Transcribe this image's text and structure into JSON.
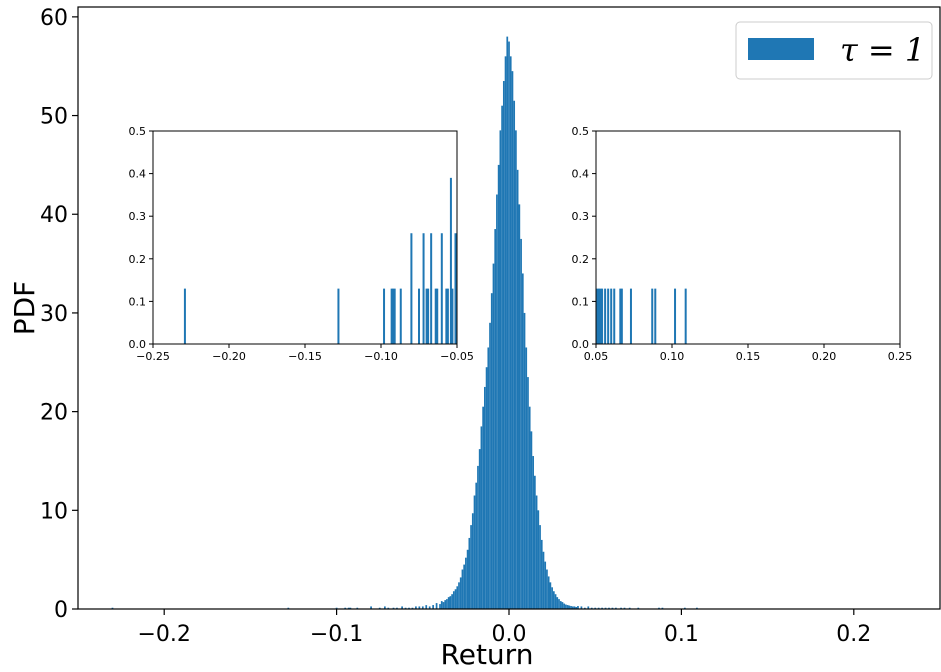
{
  "chart_data": [
    {
      "type": "bar",
      "role": "main",
      "xlabel": "Return",
      "ylabel": "PDF",
      "xlim": [
        -0.25,
        0.25
      ],
      "ylim": [
        0,
        61
      ],
      "xticks": [
        -0.2,
        -0.1,
        0.0,
        0.1,
        0.2
      ],
      "xtick_labels": [
        "−0.2",
        "−0.1",
        "0.0",
        "0.1",
        "0.2"
      ],
      "yticks": [
        0,
        10,
        20,
        30,
        40,
        50,
        60
      ],
      "ytick_labels": [
        "0",
        "10",
        "20",
        "30",
        "40",
        "50",
        "60"
      ],
      "legend": {
        "label": "τ = 1",
        "placement": "top-right"
      },
      "series": [
        {
          "name": "τ = 1",
          "color": "#1f77b4",
          "bin_width": 0.001,
          "x": [
            -0.23,
            -0.128,
            -0.1,
            -0.095,
            -0.093,
            -0.092,
            -0.088,
            -0.08,
            -0.075,
            -0.072,
            -0.07,
            -0.067,
            -0.065,
            -0.062,
            -0.06,
            -0.058,
            -0.056,
            -0.054,
            -0.052,
            -0.05,
            -0.048,
            -0.046,
            -0.044,
            -0.042,
            -0.04,
            -0.039,
            -0.038,
            -0.037,
            -0.036,
            -0.035,
            -0.034,
            -0.033,
            -0.032,
            -0.031,
            -0.03,
            -0.029,
            -0.028,
            -0.027,
            -0.026,
            -0.025,
            -0.024,
            -0.023,
            -0.022,
            -0.021,
            -0.02,
            -0.019,
            -0.018,
            -0.017,
            -0.016,
            -0.015,
            -0.014,
            -0.013,
            -0.012,
            -0.011,
            -0.01,
            -0.009,
            -0.008,
            -0.007,
            -0.006,
            -0.005,
            -0.004,
            -0.003,
            -0.002,
            -0.001,
            0.0,
            0.001,
            0.002,
            0.003,
            0.004,
            0.005,
            0.006,
            0.007,
            0.008,
            0.009,
            0.01,
            0.011,
            0.012,
            0.013,
            0.014,
            0.015,
            0.016,
            0.017,
            0.018,
            0.019,
            0.02,
            0.021,
            0.022,
            0.023,
            0.024,
            0.025,
            0.026,
            0.027,
            0.028,
            0.029,
            0.03,
            0.031,
            0.032,
            0.033,
            0.034,
            0.035,
            0.036,
            0.037,
            0.038,
            0.039,
            0.04,
            0.042,
            0.044,
            0.046,
            0.048,
            0.05,
            0.052,
            0.054,
            0.056,
            0.058,
            0.06,
            0.062,
            0.065,
            0.067,
            0.07,
            0.075,
            0.087,
            0.089,
            0.102,
            0.109
          ],
          "values": [
            0.13,
            0.13,
            0.13,
            0.13,
            0.13,
            0.13,
            0.13,
            0.26,
            0.13,
            0.26,
            0.13,
            0.13,
            0.13,
            0.26,
            0.13,
            0.13,
            0.13,
            0.26,
            0.26,
            0.26,
            0.39,
            0.26,
            0.4,
            0.6,
            0.5,
            0.8,
            0.7,
            0.9,
            1.0,
            1.2,
            1.3,
            1.5,
            1.8,
            2.0,
            2.3,
            2.7,
            3.2,
            4.0,
            4.5,
            5.2,
            6.0,
            7.2,
            8.5,
            9.7,
            11.5,
            12.8,
            14.5,
            16.2,
            18.5,
            20.5,
            22.5,
            24.5,
            26.5,
            29.0,
            32.0,
            35.0,
            38.5,
            42.0,
            45.0,
            48.5,
            51.0,
            53.5,
            56.0,
            58.0,
            57.5,
            56.0,
            54.5,
            51.5,
            48.5,
            44.5,
            41.0,
            37.5,
            34.0,
            30.0,
            26.5,
            23.5,
            20.5,
            18.0,
            15.5,
            13.5,
            11.5,
            10.0,
            8.5,
            7.0,
            5.8,
            4.8,
            4.0,
            3.3,
            2.7,
            2.2,
            1.8,
            1.5,
            1.2,
            1.0,
            0.8,
            0.7,
            0.55,
            0.45,
            0.4,
            0.35,
            0.3,
            0.26,
            0.26,
            0.2,
            0.3,
            0.26,
            0.13,
            0.26,
            0.13,
            0.13,
            0.13,
            0.13,
            0.13,
            0.13,
            0.13,
            0.13,
            0.13,
            0.13,
            0.13,
            0.13,
            0.13,
            0.13,
            0.13,
            0.13
          ]
        }
      ]
    },
    {
      "type": "bar",
      "role": "inset-left",
      "xlim": [
        -0.25,
        -0.05
      ],
      "ylim": [
        0,
        0.5
      ],
      "xticks": [
        -0.25,
        -0.2,
        -0.15,
        -0.1,
        -0.05
      ],
      "xtick_labels": [
        "−0.25",
        "−0.20",
        "−0.15",
        "−0.10",
        "−0.05"
      ],
      "yticks": [
        0.0,
        0.1,
        0.2,
        0.3,
        0.4,
        0.5
      ],
      "ytick_labels": [
        "0.0",
        "0.1",
        "0.2",
        "0.3",
        "0.4",
        "0.5"
      ],
      "series": [
        {
          "color": "#1f77b4",
          "x": [
            -0.229,
            -0.128,
            -0.098,
            -0.093,
            -0.092,
            -0.091,
            -0.087,
            -0.08,
            -0.075,
            -0.072,
            -0.07,
            -0.069,
            -0.067,
            -0.064,
            -0.063,
            -0.06,
            -0.057,
            -0.056,
            -0.054,
            -0.053,
            -0.051
          ],
          "values": [
            0.13,
            0.13,
            0.13,
            0.13,
            0.13,
            0.13,
            0.13,
            0.26,
            0.13,
            0.26,
            0.13,
            0.13,
            0.26,
            0.13,
            0.13,
            0.26,
            0.13,
            0.13,
            0.39,
            0.13,
            0.26
          ]
        }
      ]
    },
    {
      "type": "bar",
      "role": "inset-right",
      "xlim": [
        0.05,
        0.25
      ],
      "ylim": [
        0,
        0.5
      ],
      "xticks": [
        0.05,
        0.1,
        0.15,
        0.2,
        0.25
      ],
      "xtick_labels": [
        "0.05",
        "0.10",
        "0.15",
        "0.20",
        "0.25"
      ],
      "yticks": [
        0.0,
        0.1,
        0.2,
        0.3,
        0.4,
        0.5
      ],
      "ytick_labels": [
        "0.0",
        "0.1",
        "0.2",
        "0.3",
        "0.4",
        "0.5"
      ],
      "series": [
        {
          "color": "#1f77b4",
          "x": [
            0.051,
            0.052,
            0.053,
            0.054,
            0.056,
            0.058,
            0.06,
            0.062,
            0.066,
            0.067,
            0.073,
            0.087,
            0.089,
            0.102,
            0.109
          ],
          "values": [
            0.13,
            0.13,
            0.13,
            0.13,
            0.13,
            0.13,
            0.13,
            0.13,
            0.13,
            0.13,
            0.13,
            0.13,
            0.13,
            0.13,
            0.13
          ]
        }
      ]
    }
  ]
}
